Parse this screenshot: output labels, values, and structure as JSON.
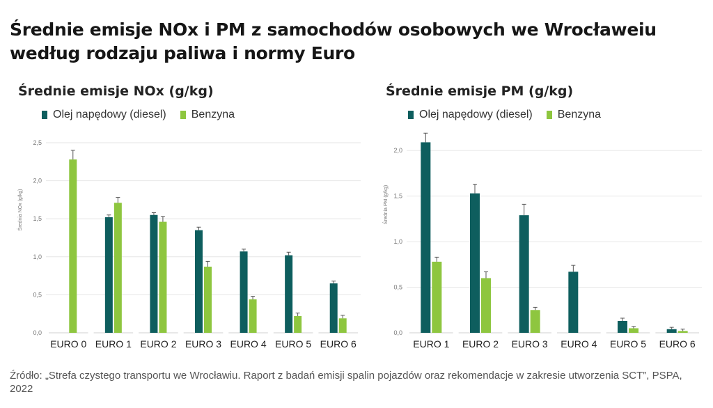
{
  "title": {
    "line1": "Średnie emisje NOx i PM z samochodów osobowych we Wrocławeiu",
    "line2": "według rodzaju paliwa i normy Euro"
  },
  "source": "Źródło: „Strefa czystego transportu we Wrocławiu. Raport z badań emisji spalin pojazdów oraz rekomendacje w zakresie utworzenia SCT”, PSPA, 2022",
  "colors": {
    "diesel": "#0e5e5e",
    "petrol": "#8ec63f",
    "grid": "#e6e6e6",
    "error": "#555555"
  },
  "chart_data": [
    {
      "type": "bar",
      "title": "Średnie emisje NOx (g/kg)",
      "ylabel": "Średnia NOx (g/kg)",
      "xlabel": "",
      "ylim": [
        0,
        2.5
      ],
      "yticks": [
        "0,0",
        "0,5",
        "1,0",
        "1,5",
        "2,0",
        "2,5"
      ],
      "grid": true,
      "legend": "top-left",
      "categories": [
        "EURO 0",
        "EURO 1",
        "EURO 2",
        "EURO 3",
        "EURO 4",
        "EURO 5",
        "EURO 6"
      ],
      "series": [
        {
          "name": "Olej napędowy (diesel)",
          "values": [
            null,
            1.52,
            1.55,
            1.35,
            1.07,
            1.02,
            0.65
          ],
          "errors": [
            null,
            0.03,
            0.03,
            0.04,
            0.03,
            0.04,
            0.03
          ]
        },
        {
          "name": "Benzyna",
          "values": [
            2.28,
            1.71,
            1.46,
            0.87,
            0.44,
            0.22,
            0.19
          ],
          "errors": [
            0.12,
            0.07,
            0.07,
            0.07,
            0.04,
            0.04,
            0.04
          ]
        }
      ]
    },
    {
      "type": "bar",
      "title": "Średnie emisje PM (g/kg)",
      "ylabel": "Średnia PM (g/kg)",
      "xlabel": "",
      "ylim": [
        0,
        2.2
      ],
      "yticks": [
        "0,0",
        "0,5",
        "1,0",
        "1,5",
        "2,0"
      ],
      "grid": true,
      "legend": "top-left",
      "categories": [
        "EURO 1",
        "EURO 2",
        "EURO 3",
        "EURO 4",
        "EURO 5",
        "EURO 6"
      ],
      "series": [
        {
          "name": "Olej napędowy (diesel)",
          "values": [
            2.09,
            1.53,
            1.29,
            0.67,
            0.13,
            0.04
          ],
          "errors": [
            0.1,
            0.1,
            0.12,
            0.07,
            0.03,
            0.02
          ]
        },
        {
          "name": "Benzyna",
          "values": [
            0.78,
            0.6,
            0.25,
            null,
            0.05,
            0.02
          ],
          "errors": [
            0.05,
            0.07,
            0.03,
            null,
            0.02,
            0.02
          ]
        }
      ]
    }
  ]
}
